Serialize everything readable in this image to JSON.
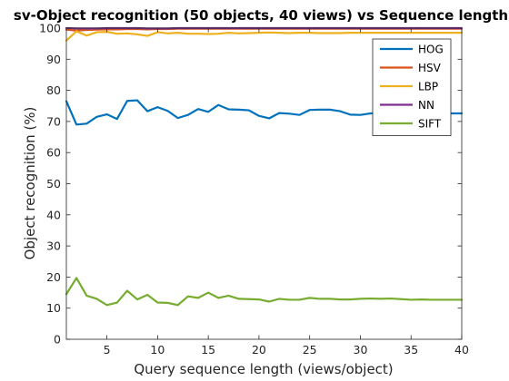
{
  "chart_data": {
    "type": "line",
    "title": "sv-Object recognition (50 objects, 40 views) vs Sequence length",
    "xlabel": "Query sequence length (views/object)",
    "ylabel": "Object recognition (%)",
    "xlim": [
      1,
      40
    ],
    "ylim": [
      0,
      100
    ],
    "xticks": [
      5,
      10,
      15,
      20,
      25,
      30,
      35,
      40
    ],
    "yticks": [
      0,
      10,
      20,
      30,
      40,
      50,
      60,
      70,
      80,
      90,
      100
    ],
    "grid": false,
    "legend_position": "top-right",
    "x": [
      1,
      2,
      3,
      4,
      5,
      6,
      7,
      8,
      9,
      10,
      11,
      12,
      13,
      14,
      15,
      16,
      17,
      18,
      19,
      20,
      21,
      22,
      23,
      24,
      25,
      26,
      27,
      28,
      29,
      30,
      31,
      32,
      33,
      34,
      35,
      36,
      37,
      38,
      39,
      40
    ],
    "series": [
      {
        "name": "HOG",
        "color": "#0072BD",
        "values": [
          76.5,
          69,
          69.3,
          71.5,
          72.3,
          70.8,
          76.6,
          76.8,
          73.3,
          74.6,
          73.4,
          71.1,
          72.1,
          74,
          73.1,
          75.3,
          73.9,
          73.8,
          73.6,
          71.8,
          71,
          72.7,
          72.5,
          72.1,
          73.7,
          73.8,
          73.8,
          73.3,
          72.2,
          72.1,
          72.6,
          72.7,
          72.6,
          72.5,
          72.6,
          72.6,
          72.6,
          72.6,
          72.6,
          72.6
        ]
      },
      {
        "name": "HSV",
        "color": "#D95319",
        "values": [
          99.5,
          99.2,
          99.4,
          99.5,
          99.6,
          99.6,
          99.7,
          99.7,
          99.6,
          99.7,
          99.7,
          99.8,
          99.8,
          99.8,
          99.8,
          99.8,
          99.8,
          99.8,
          99.8,
          99.8,
          99.8,
          99.8,
          99.8,
          99.8,
          99.8,
          99.8,
          99.8,
          99.8,
          99.8,
          99.8,
          99.8,
          99.8,
          99.8,
          99.8,
          99.8,
          99.8,
          99.8,
          99.8,
          99.8,
          99.8
        ]
      },
      {
        "name": "LBP",
        "color": "#EDB120",
        "values": [
          96,
          99,
          97.6,
          98.7,
          98.8,
          98.2,
          98.3,
          98,
          97.5,
          98.7,
          98.3,
          98.5,
          98.2,
          98.2,
          98.1,
          98.2,
          98.5,
          98.3,
          98.4,
          98.5,
          98.6,
          98.5,
          98.4,
          98.5,
          98.5,
          98.4,
          98.4,
          98.4,
          98.5,
          98.5,
          98.5,
          98.5,
          98.5,
          98.5,
          98.5,
          98.5,
          98.5,
          98.5,
          98.5,
          98.5
        ]
      },
      {
        "name": "NN",
        "color": "#7E2F8E",
        "values": [
          100,
          99.9,
          99.9,
          99.9,
          100,
          100,
          100,
          100,
          99.9,
          99.9,
          99.9,
          100,
          100,
          100,
          100,
          100,
          100,
          100,
          100,
          100,
          100,
          100,
          100,
          100,
          100,
          100,
          100,
          100,
          100,
          100,
          100,
          100,
          100,
          100,
          100,
          100,
          100,
          100,
          100,
          100
        ]
      },
      {
        "name": "SIFT",
        "color": "#77AC30",
        "values": [
          14.5,
          19.7,
          14,
          13,
          11,
          11.8,
          15.6,
          12.8,
          14.3,
          11.8,
          11.7,
          11,
          13.8,
          13.3,
          15,
          13.3,
          14,
          13,
          12.9,
          12.8,
          12.1,
          13,
          12.7,
          12.7,
          13.3,
          13,
          13,
          12.8,
          12.8,
          13,
          13.1,
          13,
          13.1,
          12.9,
          12.7,
          12.8,
          12.7,
          12.7,
          12.7,
          12.7
        ]
      }
    ]
  }
}
